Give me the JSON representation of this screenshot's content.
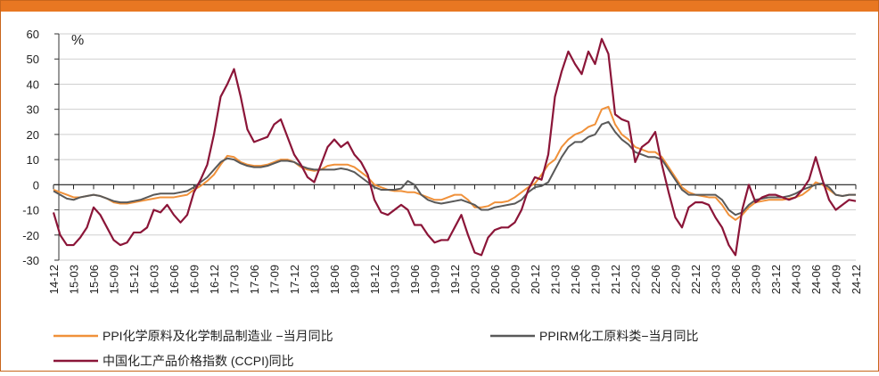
{
  "chart_data": {
    "type": "line",
    "ylabel": "%",
    "ylim": [
      -30,
      60
    ],
    "yticks": [
      -30,
      -20,
      -10,
      0,
      10,
      20,
      30,
      40,
      50,
      60
    ],
    "grid": true,
    "legend": "bottom",
    "categories": [
      "14-12",
      null,
      null,
      "15-03",
      null,
      null,
      "15-06",
      null,
      null,
      "15-09",
      null,
      null,
      "15-12",
      null,
      null,
      "16-03",
      null,
      null,
      "16-06",
      null,
      null,
      "16-09",
      null,
      null,
      "16-12",
      null,
      null,
      "17-03",
      null,
      null,
      "17-06",
      null,
      null,
      "17-09",
      null,
      null,
      "17-12",
      null,
      null,
      "18-03",
      null,
      null,
      "18-06",
      null,
      null,
      "18-09",
      null,
      null,
      "18-12",
      null,
      null,
      "19-03",
      null,
      null,
      "19-06",
      null,
      null,
      "19-09",
      null,
      null,
      "19-12",
      null,
      null,
      "20-03",
      null,
      null,
      "20-06",
      null,
      null,
      "20-09",
      null,
      null,
      "20-12",
      null,
      null,
      "21-03",
      null,
      null,
      "21-06",
      null,
      null,
      "21-09",
      null,
      null,
      "21-12",
      null,
      null,
      "22-03",
      null,
      null,
      "22-06",
      null,
      null,
      "22-09",
      null,
      null,
      "22-12",
      null,
      null,
      "23-03",
      null,
      null,
      "23-06",
      null,
      null,
      "23-09",
      null,
      null,
      "23-12",
      null,
      null,
      "24-03",
      null,
      null,
      "24-06",
      null,
      null,
      "24-09",
      null,
      null,
      "24-12"
    ],
    "series": [
      {
        "name": "PPI化学原料及化学制品制造业 −当月同比",
        "color": "#f0913a",
        "values": [
          -2,
          -3,
          -4,
          -5,
          -5,
          -4.5,
          -4,
          -4.5,
          -5.5,
          -7,
          -7.5,
          -7.5,
          -7,
          -6.5,
          -6,
          -5.5,
          -5,
          -5,
          -5,
          -4.5,
          -4,
          -2,
          -0.5,
          1.5,
          4,
          8,
          11.5,
          11,
          9,
          8,
          7.5,
          7.5,
          8,
          9,
          10,
          10,
          9,
          7,
          6,
          5.5,
          6,
          7.5,
          8,
          8,
          8,
          7,
          5,
          3,
          0,
          -1,
          -2,
          -2.5,
          -2.5,
          -3,
          -3,
          -4,
          -5,
          -6,
          -6,
          -5,
          -4,
          -4,
          -6,
          -9,
          -9,
          -8.5,
          -7,
          -7,
          -6.5,
          -5,
          -3,
          -1,
          0.5,
          4,
          8,
          10,
          15,
          18,
          20,
          21,
          23,
          24,
          30,
          31,
          24,
          20,
          18,
          15,
          14,
          13,
          13,
          11,
          7,
          3,
          -1,
          -3,
          -4,
          -4.5,
          -5,
          -5,
          -8,
          -12,
          -14,
          -12,
          -9,
          -7,
          -6.5,
          -6,
          -6,
          -6,
          -5.5,
          -5,
          -4,
          -2,
          1,
          0,
          -2,
          -4,
          -4.5,
          -4,
          -4
        ]
      },
      {
        "name": "PPIRM化工原料类−当月同比",
        "color": "#595959",
        "values": [
          -2.5,
          -4,
          -5.5,
          -6,
          -5,
          -4.5,
          -4,
          -4.5,
          -5.5,
          -6.5,
          -7,
          -7,
          -6.5,
          -6,
          -5,
          -4,
          -3.5,
          -3.5,
          -3.5,
          -3,
          -2.5,
          -1,
          1,
          3,
          6,
          9,
          10.5,
          10,
          8.5,
          7.5,
          7,
          7,
          7.5,
          8.5,
          9.5,
          9.5,
          9,
          7.5,
          6.5,
          6,
          6,
          6,
          6,
          6.5,
          6,
          5,
          3,
          1,
          -1,
          -2,
          -2,
          -2,
          -1.5,
          1.5,
          0,
          -4,
          -6,
          -7,
          -7.5,
          -7,
          -6.5,
          -6,
          -7,
          -8,
          -10,
          -10,
          -9,
          -8.5,
          -8,
          -7.5,
          -6,
          -3,
          -1,
          -0.5,
          1,
          6,
          11,
          15,
          17,
          17,
          19,
          20,
          24,
          25,
          21,
          18,
          16,
          13,
          12,
          11,
          11,
          10,
          6,
          2,
          -2,
          -4,
          -4,
          -4,
          -4,
          -4,
          -6,
          -10,
          -12,
          -11,
          -8,
          -6,
          -5.5,
          -5,
          -5,
          -5,
          -4.5,
          -3.5,
          -2,
          -1,
          0,
          0.5,
          -1,
          -4,
          -4.5,
          -4,
          -4
        ]
      },
      {
        "name": "中国化工产品价格指数 (CCPI)同比",
        "color": "#8b1538",
        "values": [
          -11,
          -20,
          -24,
          -24,
          -21,
          -17,
          -9,
          -12,
          -17,
          -22,
          -24,
          -23,
          -19,
          -19,
          -17,
          -10,
          -11,
          -8,
          -12,
          -15,
          -12,
          -3,
          2,
          8,
          20,
          35,
          40,
          46,
          35,
          22,
          17,
          18,
          19,
          24,
          26,
          19,
          12,
          8,
          3,
          1,
          8,
          15,
          18,
          15,
          17,
          12,
          9,
          4,
          -6,
          -11,
          -12,
          -10,
          -8,
          -10,
          -16,
          -16,
          -20,
          -23,
          -22,
          -22,
          -17,
          -12,
          -20,
          -27,
          -28,
          -21,
          -18,
          -17,
          -17,
          -15,
          -10,
          -2,
          3,
          2,
          12,
          35,
          45,
          53,
          48,
          44,
          53,
          48,
          58,
          52,
          28,
          26,
          25,
          9,
          15,
          17,
          21,
          8,
          -3,
          -13,
          -17,
          -9,
          -7,
          -7,
          -8,
          -13,
          -17,
          -24,
          -28,
          -10,
          0,
          -7,
          -5,
          -4,
          -4,
          -5,
          -6,
          -5,
          -2,
          2,
          11,
          2,
          -6,
          -10,
          -8,
          -6,
          -6.5
        ]
      }
    ]
  }
}
